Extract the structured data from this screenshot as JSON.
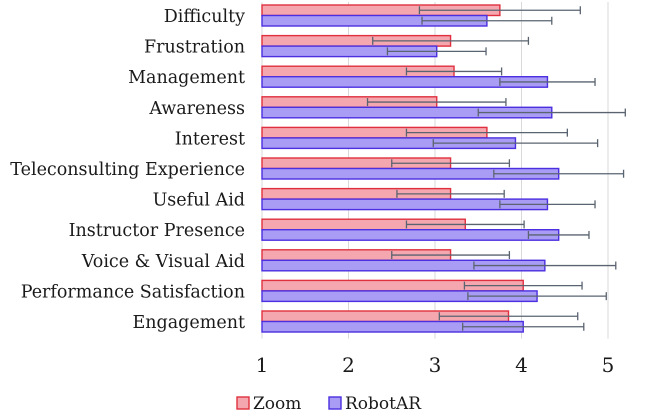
{
  "chart_data": {
    "type": "bar",
    "orientation": "horizontal",
    "categories": [
      "Difficulty",
      "Frustration",
      "Management ",
      "Awareness",
      "Interest",
      "Teleconsulting Experience",
      "Useful Aid",
      "Instructor Presence",
      "Voice & Visual Aid",
      "Performance Satisfaction",
      "Engagement"
    ],
    "series": [
      {
        "name": "Zoom",
        "color": "#f4a7ae",
        "edge": "#e0303f",
        "values": [
          3.75,
          3.18,
          3.22,
          3.02,
          3.6,
          3.18,
          3.18,
          3.35,
          3.18,
          4.02,
          3.85
        ],
        "error": [
          0.93,
          0.9,
          0.55,
          0.8,
          0.93,
          0.68,
          0.62,
          0.68,
          0.68,
          0.68,
          0.8
        ]
      },
      {
        "name": "RobotAR",
        "color": "#a99cf5",
        "edge": "#4b2fe0",
        "values": [
          3.6,
          3.02,
          4.3,
          4.35,
          3.93,
          4.43,
          4.3,
          4.43,
          4.27,
          4.18,
          4.02
        ],
        "error": [
          0.75,
          0.57,
          0.55,
          0.85,
          0.95,
          0.75,
          0.55,
          0.35,
          0.82,
          0.8,
          0.7
        ]
      }
    ],
    "xlim": [
      1,
      5
    ],
    "xticks": [
      1,
      2,
      3,
      4,
      5
    ],
    "grid": true,
    "legend_position": "bottom"
  }
}
